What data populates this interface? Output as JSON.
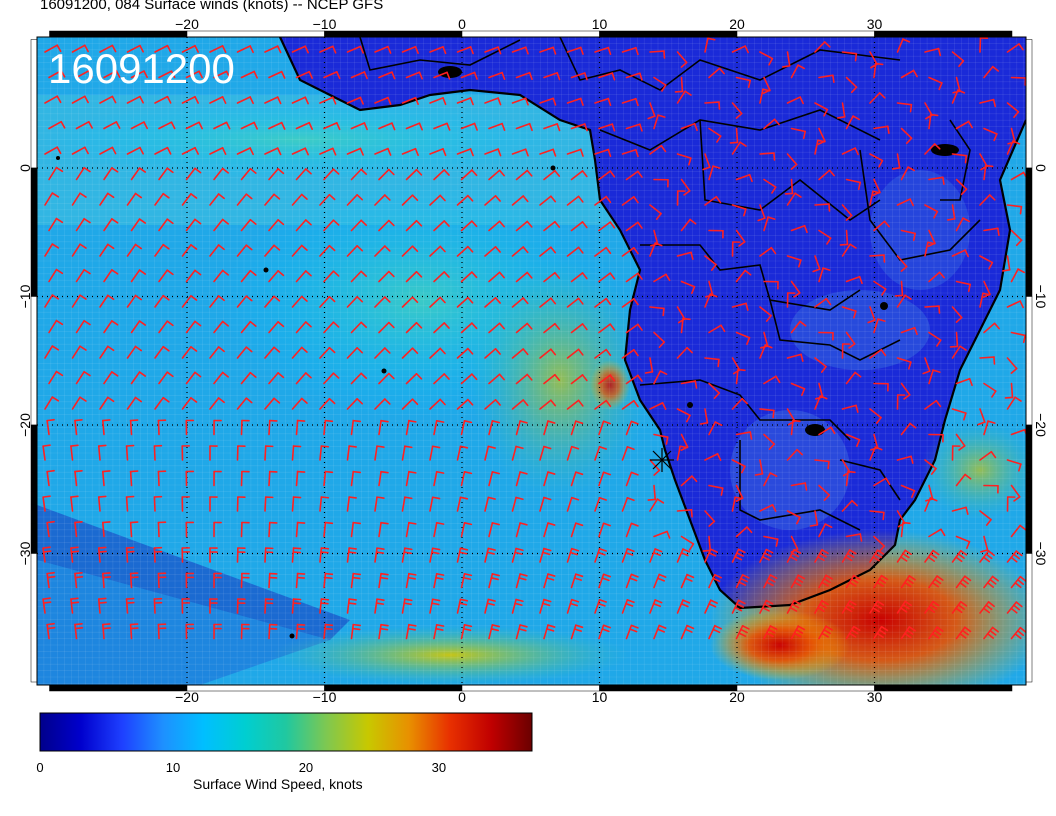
{
  "title": "16091200, 084 Surface winds (knots) -- NCEP GFS",
  "stamp": "16091200",
  "lon_labels": [
    "−20",
    "−10",
    "0",
    "10",
    "20",
    "30"
  ],
  "lon_values": [
    -20,
    -10,
    0,
    10,
    20,
    30
  ],
  "lat_labels": [
    "0",
    "−10",
    "−20",
    "−30"
  ],
  "lat_values": [
    0,
    -10,
    -20,
    -30
  ],
  "colorbar": {
    "label": "Surface Wind Speed, knots",
    "ticks": [
      "0",
      "10",
      "20",
      "30"
    ],
    "tick_values": [
      0,
      10,
      20,
      30
    ],
    "max": 37,
    "colors": [
      "#00008b",
      "#0000cd",
      "#1e40ff",
      "#1e90ff",
      "#00bfff",
      "#00ced1",
      "#20c8a0",
      "#7fc850",
      "#c8c800",
      "#e89000",
      "#e83000",
      "#c00000",
      "#6b0000"
    ]
  },
  "colors": {
    "barb": "#ff2020",
    "land": "#1a2ad8",
    "coast": "#000000"
  },
  "marker_symbol": "✱"
}
